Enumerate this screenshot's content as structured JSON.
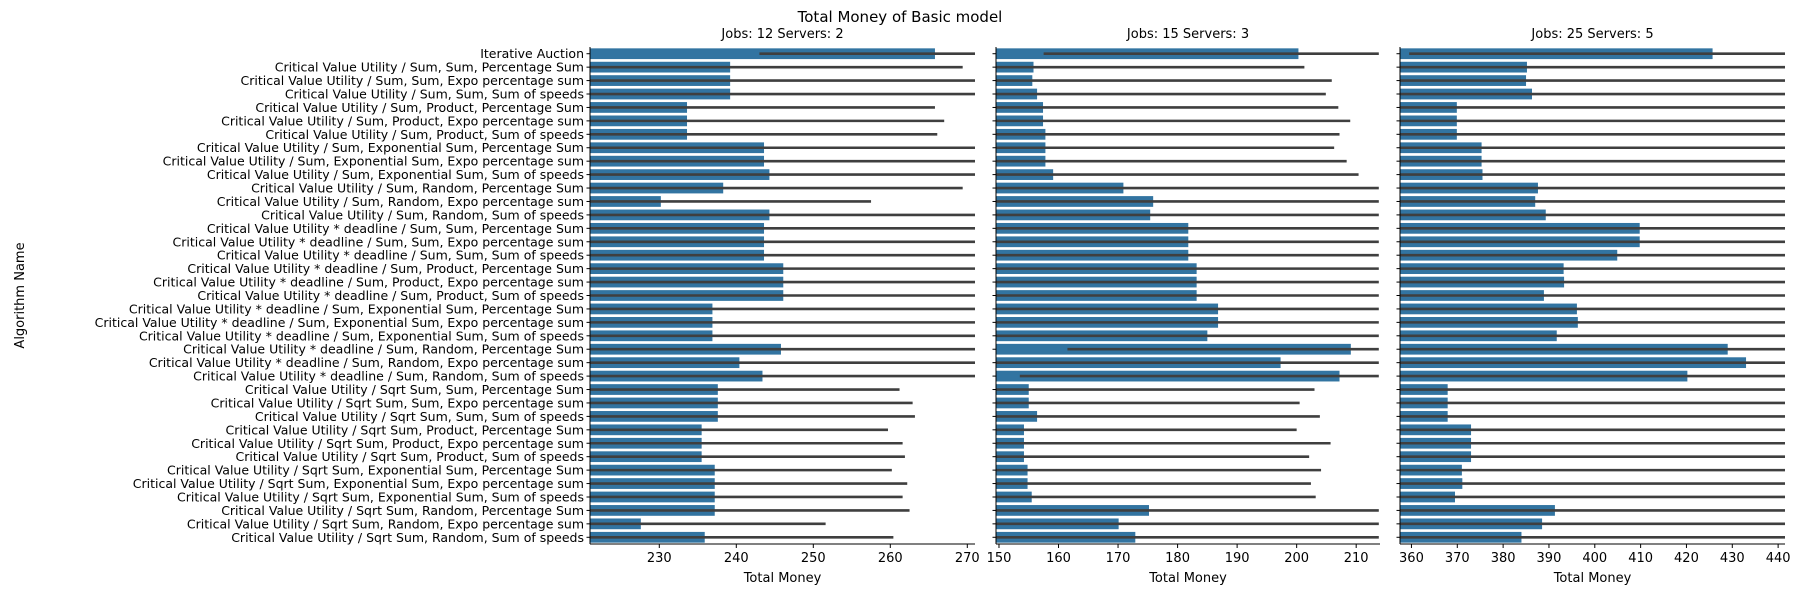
{
  "figure": {
    "title": "Total Money of Basic model",
    "ylabel": "Algorithm Name",
    "bar_color": "#3274a1",
    "errbar_color": "#3f3f3f"
  },
  "chart_data": [
    {
      "type": "bar",
      "orientation": "horizontal",
      "title": "Jobs: 12 Servers: 2",
      "xlabel": "Total Money",
      "ylabel": "Algorithm Name",
      "xlim": [
        221,
        271
      ],
      "xticks": [
        230,
        240,
        250,
        260,
        270
      ],
      "grid": false,
      "categories": [
        "Iterative Auction",
        "Critical Value Utility / Sum, Sum, Percentage Sum",
        "Critical Value Utility / Sum, Sum, Expo percentage sum",
        "Critical Value Utility / Sum, Sum, Sum of speeds",
        "Critical Value Utility / Sum, Product, Percentage Sum",
        "Critical Value Utility / Sum, Product, Expo percentage sum",
        "Critical Value Utility / Sum, Product, Sum of speeds",
        "Critical Value Utility / Sum, Exponential Sum, Percentage Sum",
        "Critical Value Utility / Sum, Exponential Sum, Expo percentage sum",
        "Critical Value Utility / Sum, Exponential Sum, Sum of speeds",
        "Critical Value Utility / Sum, Random, Percentage Sum",
        "Critical Value Utility / Sum, Random, Expo percentage sum",
        "Critical Value Utility / Sum, Random, Sum of speeds",
        "Critical Value Utility * deadline / Sum, Sum, Percentage Sum",
        "Critical Value Utility * deadline / Sum, Sum, Expo percentage sum",
        "Critical Value Utility * deadline / Sum, Sum, Sum of speeds",
        "Critical Value Utility * deadline / Sum, Product, Percentage Sum",
        "Critical Value Utility * deadline / Sum, Product, Expo percentage sum",
        "Critical Value Utility * deadline / Sum, Product, Sum of speeds",
        "Critical Value Utility * deadline / Sum, Exponential Sum, Percentage Sum",
        "Critical Value Utility * deadline / Sum, Exponential Sum, Expo percentage sum",
        "Critical Value Utility * deadline / Sum, Exponential Sum, Sum of speeds",
        "Critical Value Utility * deadline / Sum, Random, Percentage Sum",
        "Critical Value Utility * deadline / Sum, Random, Expo percentage sum",
        "Critical Value Utility * deadline / Sum, Random, Sum of speeds",
        "Critical Value Utility / Sqrt Sum, Sum, Percentage Sum",
        "Critical Value Utility / Sqrt Sum, Sum, Expo percentage sum",
        "Critical Value Utility / Sqrt Sum, Sum, Sum of speeds",
        "Critical Value Utility / Sqrt Sum, Product, Percentage Sum",
        "Critical Value Utility / Sqrt Sum, Product, Expo percentage sum",
        "Critical Value Utility / Sqrt Sum, Product, Sum of speeds",
        "Critical Value Utility / Sqrt Sum, Exponential Sum, Percentage Sum",
        "Critical Value Utility / Sqrt Sum, Exponential Sum, Expo percentage sum",
        "Critical Value Utility / Sqrt Sum, Exponential Sum, Sum of speeds",
        "Critical Value Utility / Sqrt Sum, Random, Percentage Sum",
        "Critical Value Utility / Sqrt Sum, Random, Expo percentage sum",
        "Critical Value Utility / Sqrt Sum, Random, Sum of speeds"
      ],
      "values": [
        265.8,
        239.2,
        239.2,
        239.2,
        233.6,
        233.6,
        233.6,
        243.6,
        243.6,
        244.3,
        238.3,
        230.2,
        244.3,
        243.6,
        243.6,
        243.6,
        246.1,
        246.1,
        246.1,
        236.9,
        236.9,
        236.9,
        245.8,
        240.4,
        243.4,
        237.6,
        237.6,
        237.6,
        235.5,
        235.5,
        235.5,
        237.2,
        237.2,
        237.2,
        237.2,
        227.6,
        235.9
      ],
      "error_low": [
        243.0,
        221.0,
        221.0,
        221.0,
        221.0,
        221.0,
        221.0,
        221.0,
        221.0,
        221.0,
        221.0,
        221.0,
        221.0,
        221.0,
        221.0,
        221.0,
        221.0,
        221.0,
        221.0,
        221.0,
        221.0,
        221.0,
        221.0,
        221.0,
        221.0,
        221.0,
        221.0,
        221.0,
        221.0,
        221.0,
        221.0,
        221.0,
        221.0,
        221.0,
        221.0,
        221.0,
        221.0
      ],
      "error_high": [
        271.0,
        269.4,
        271.0,
        271.0,
        265.8,
        267.0,
        266.1,
        271.0,
        271.0,
        271.0,
        269.4,
        257.5,
        271.0,
        271.0,
        271.0,
        271.0,
        271.0,
        271.0,
        271.0,
        271.0,
        271.0,
        271.0,
        271.0,
        271.0,
        271.0,
        261.2,
        262.9,
        263.2,
        259.7,
        261.6,
        261.9,
        260.2,
        262.2,
        261.6,
        262.5,
        251.6,
        260.4
      ]
    },
    {
      "type": "bar",
      "orientation": "horizontal",
      "title": "Jobs: 15 Servers: 3",
      "xlabel": "Total Money",
      "xlim": [
        149.5,
        214
      ],
      "xticks": [
        150,
        160,
        170,
        180,
        190,
        200,
        210
      ],
      "grid": false,
      "values": [
        200.3,
        155.8,
        155.6,
        156.4,
        157.4,
        157.4,
        157.8,
        157.8,
        157.8,
        159.1,
        170.9,
        175.9,
        175.4,
        181.8,
        181.8,
        181.8,
        183.2,
        183.2,
        183.2,
        186.8,
        186.8,
        185.0,
        209.1,
        197.3,
        207.2,
        155.0,
        155.0,
        156.4,
        154.2,
        154.2,
        154.2,
        154.8,
        154.8,
        155.5,
        175.2,
        170.1,
        172.9
      ],
      "error_low": [
        157.5,
        149.5,
        149.5,
        149.5,
        149.5,
        149.5,
        149.5,
        149.5,
        149.5,
        149.5,
        149.5,
        149.5,
        149.5,
        149.5,
        149.5,
        149.5,
        149.5,
        149.5,
        149.5,
        149.5,
        149.5,
        149.5,
        161.5,
        149.5,
        153.5,
        149.5,
        149.5,
        149.5,
        149.5,
        149.5,
        149.5,
        149.5,
        149.5,
        149.5,
        149.5,
        149.5,
        149.5
      ],
      "error_high": [
        213.8,
        201.3,
        205.9,
        204.9,
        207.0,
        209.0,
        207.2,
        206.3,
        208.4,
        210.4,
        213.8,
        213.8,
        213.8,
        213.8,
        213.8,
        213.8,
        213.8,
        213.8,
        213.8,
        213.8,
        213.8,
        213.8,
        213.8,
        213.8,
        213.8,
        203.0,
        200.5,
        203.9,
        200.0,
        205.7,
        202.1,
        204.1,
        202.4,
        203.2,
        213.8,
        213.8,
        213.8
      ]
    },
    {
      "type": "bar",
      "orientation": "horizontal",
      "title": "Jobs: 25 Servers: 5",
      "xlabel": "Total Money",
      "xlim": [
        357.5,
        441.5
      ],
      "xticks": [
        360,
        370,
        380,
        390,
        400,
        410,
        420,
        430,
        440
      ],
      "grid": false,
      "values": [
        425.7,
        385.2,
        385.0,
        386.3,
        369.9,
        369.9,
        369.9,
        375.3,
        375.3,
        375.5,
        387.6,
        387.0,
        389.3,
        409.8,
        409.8,
        404.9,
        393.2,
        393.3,
        388.9,
        396.1,
        396.3,
        391.7,
        429.0,
        433.0,
        420.2,
        367.9,
        367.9,
        367.9,
        373.0,
        373.0,
        373.0,
        371.0,
        371.1,
        369.5,
        391.3,
        388.5,
        384.0
      ],
      "error_low": [
        359.5,
        357.5,
        357.5,
        357.5,
        357.5,
        357.5,
        357.5,
        357.5,
        357.5,
        357.5,
        357.5,
        357.5,
        357.5,
        357.5,
        357.5,
        357.5,
        357.5,
        357.5,
        357.5,
        357.5,
        357.5,
        357.5,
        357.5,
        357.5,
        357.5,
        357.5,
        357.5,
        357.5,
        357.5,
        357.5,
        357.5,
        357.5,
        357.5,
        357.5,
        357.5,
        357.5,
        357.5
      ],
      "error_high": [
        441.5,
        441.5,
        441.5,
        441.5,
        441.5,
        441.5,
        441.5,
        441.5,
        441.5,
        441.5,
        441.5,
        441.5,
        441.5,
        441.5,
        441.5,
        441.5,
        441.5,
        441.5,
        441.5,
        441.5,
        441.5,
        441.5,
        441.5,
        441.5,
        441.5,
        441.5,
        441.5,
        441.5,
        441.5,
        441.5,
        441.5,
        441.5,
        441.5,
        441.5,
        441.5,
        441.5,
        441.5
      ]
    }
  ]
}
